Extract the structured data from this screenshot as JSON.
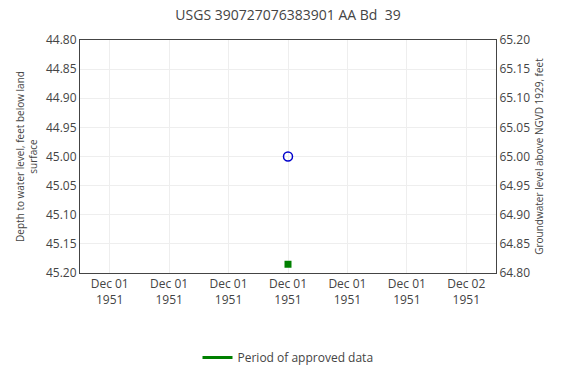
{
  "chart_data": {
    "type": "scatter",
    "title": "USGS 390727076383901 AA Bd  39",
    "ylabel": "Depth to water level, feet below land\nsurface",
    "y2label": "Groundwater level above NGVD 1929, feet",
    "categories": [
      "Dec 01\n1951",
      "Dec 01\n1951",
      "Dec 01\n1951",
      "Dec 01\n1951",
      "Dec 01\n1951",
      "Dec 01\n1951",
      "Dec 02\n1951"
    ],
    "series": [
      {
        "color": "#0000cc",
        "marker": "open_circle",
        "values": [
          null,
          null,
          null,
          45.0,
          null,
          null,
          null
        ]
      },
      {
        "color": "#008000",
        "marker": "square",
        "values": [
          null,
          null,
          null,
          45.185,
          null,
          null,
          null
        ]
      },
      {
        "name": "Period of approved data",
        "color": "#008000",
        "type": "line",
        "line_style": "solid",
        "axis": "y2",
        "values": [
          null,
          null,
          null,
          null,
          null,
          null,
          null
        ]
      }
    ],
    "ylim": [
      45.2,
      44.8
    ],
    "yticks": [
      {
        "value": 44.8,
        "label": "44.80"
      },
      {
        "value": 44.85,
        "label": "44.85"
      },
      {
        "value": 44.9,
        "label": "44.90"
      },
      {
        "value": 44.95,
        "label": "44.95"
      },
      {
        "value": 45.0,
        "label": "45.00"
      },
      {
        "value": 45.05,
        "label": "45.05"
      },
      {
        "value": 45.1,
        "label": "45.10"
      },
      {
        "value": 45.15,
        "label": "45.15"
      },
      {
        "value": 45.2,
        "label": "45.20"
      }
    ],
    "y2lim": [
      64.8,
      65.2
    ],
    "y2ticks": [
      {
        "value": 65.2,
        "label": "65.20"
      },
      {
        "value": 65.15,
        "label": "65.15"
      },
      {
        "value": 65.1,
        "label": "65.10"
      },
      {
        "value": 65.05,
        "label": "65.05"
      },
      {
        "value": 65.0,
        "label": "65.00"
      },
      {
        "value": 64.95,
        "label": "64.95"
      },
      {
        "value": 64.9,
        "label": "64.90"
      },
      {
        "value": 64.85,
        "label": "64.85"
      },
      {
        "value": 64.8,
        "label": "64.80"
      }
    ],
    "grid": true,
    "legend": "bottom"
  }
}
